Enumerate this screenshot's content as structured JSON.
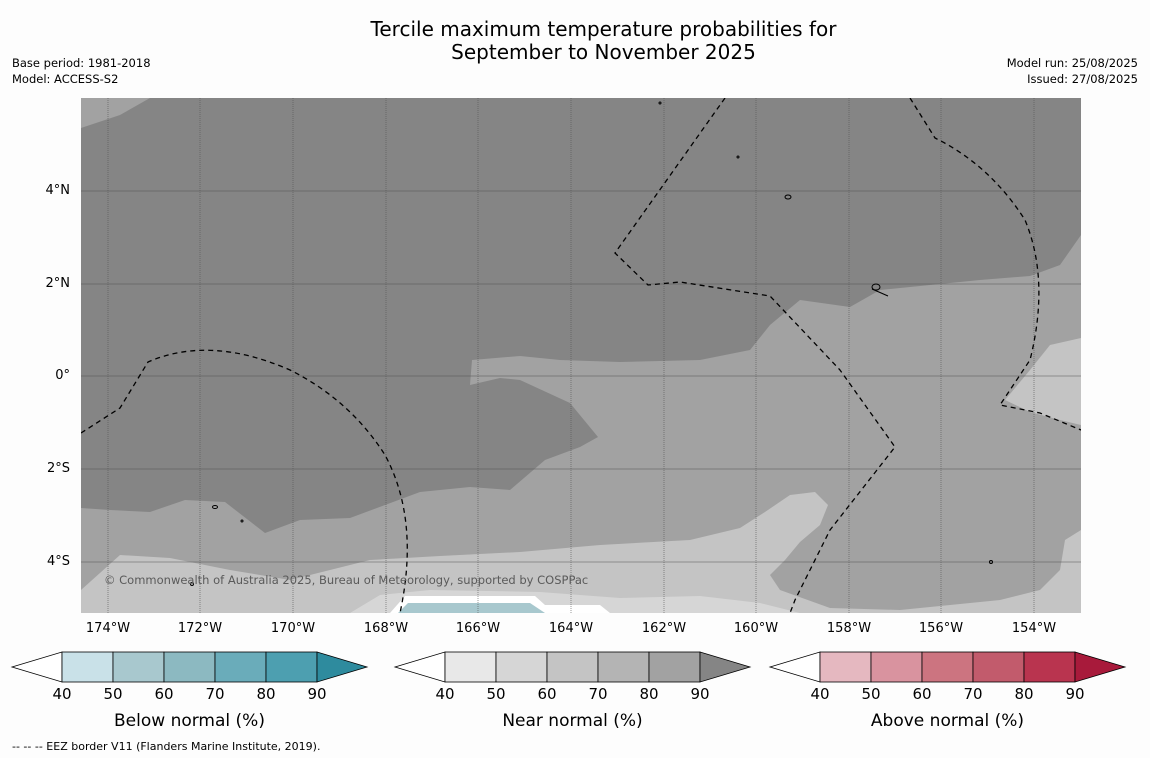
{
  "title_line1": "Tercile maximum temperature probabilities for",
  "title_line2": "September to November 2025",
  "meta_left": {
    "base_period": "Base period: 1981-2018",
    "model": "Model: ACCESS-S2"
  },
  "meta_right": {
    "model_run": "Model run: 25/08/2025",
    "issued": "Issued: 27/08/2025"
  },
  "copyright": "© Commonwealth of Australia 2025, Bureau of Meteorology, supported by COSPPac",
  "lat_labels": [
    "4°N",
    "2°N",
    "0°",
    "2°S",
    "4°S"
  ],
  "lon_labels": [
    "174°W",
    "172°W",
    "170°W",
    "168°W",
    "166°W",
    "164°W",
    "162°W",
    "160°W",
    "158°W",
    "156°W",
    "154°W"
  ],
  "colorbars": [
    {
      "label": "Below normal (%)",
      "ticks": [
        "40",
        "50",
        "60",
        "70",
        "80",
        "90"
      ],
      "colors": [
        "#ffffff",
        "#c9e1e8",
        "#a8c8ce",
        "#8cb9c1",
        "#6aacba",
        "#4d9fb0",
        "#2e8b9e"
      ]
    },
    {
      "label": "Near normal (%)",
      "ticks": [
        "40",
        "50",
        "60",
        "70",
        "80",
        "90"
      ],
      "colors": [
        "#ffffff",
        "#e8e8e8",
        "#d6d6d6",
        "#c4c4c4",
        "#b4b4b4",
        "#a2a2a2",
        "#858585"
      ]
    },
    {
      "label": "Above normal (%)",
      "ticks": [
        "40",
        "50",
        "60",
        "70",
        "80",
        "90"
      ],
      "colors": [
        "#ffffff",
        "#e5b8c0",
        "#d9939f",
        "#cc7480",
        "#c25b6c",
        "#b9344f",
        "#a81a3b"
      ]
    }
  ],
  "footnote": "--  --  -- EEZ border V11 (Flanders Marine Institute, 2019)."
}
